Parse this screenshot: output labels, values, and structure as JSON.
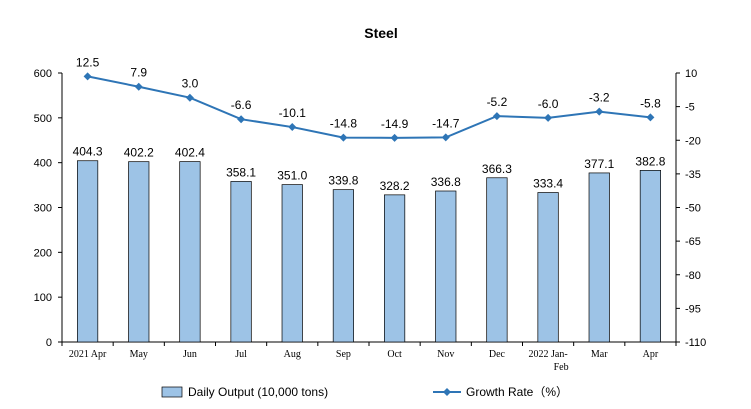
{
  "chart_data": {
    "type": "bar",
    "title": "Steel",
    "categories": [
      "2021 Apr",
      "May",
      "Jun",
      "Jul",
      "Aug",
      "Sep",
      "Oct",
      "Nov",
      "Dec",
      "2022 Jan-Feb",
      "Mar",
      "Apr"
    ],
    "series": [
      {
        "name": "Daily Output (10,000 tons)",
        "type": "bar",
        "axis": "left",
        "color": "#9DC3E6",
        "values": [
          404.3,
          402.2,
          402.4,
          358.1,
          351.0,
          339.8,
          328.2,
          336.8,
          366.3,
          333.4,
          377.1,
          382.8
        ]
      },
      {
        "name": "Growth Rate（%）",
        "type": "line",
        "axis": "right",
        "color": "#2E75B6",
        "marker": "diamond",
        "values": [
          12.5,
          7.9,
          3.0,
          -6.6,
          -10.1,
          -14.8,
          -14.9,
          -14.7,
          -5.2,
          -6.0,
          -3.2,
          -5.8
        ]
      }
    ],
    "y_left": {
      "min": 0,
      "max": 600,
      "ticks": [
        0,
        100,
        200,
        300,
        400,
        500,
        600
      ]
    },
    "y_right": {
      "ticks": [
        10,
        -5,
        -20,
        -35,
        -50,
        -65,
        -80,
        -95,
        -110
      ]
    },
    "legend": "bottom",
    "grid": false
  }
}
